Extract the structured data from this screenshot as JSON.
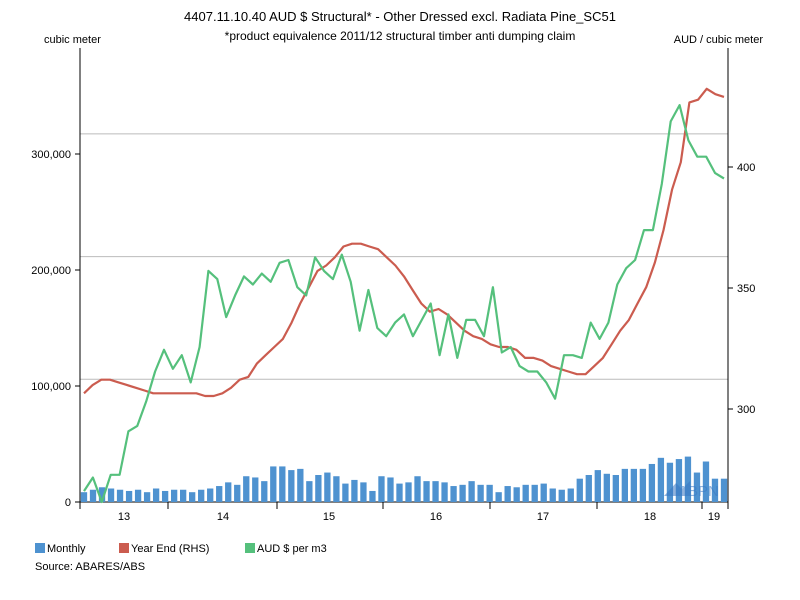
{
  "title": "4407.11.10.40 AUD $ Structural* - Other Dressed excl. Radiata Pine_SC51",
  "subtitle": "*product equivalence 2011/12 structural timber anti dumping claim",
  "left_unit": "cubic meter",
  "right_unit": "AUD / cubic meter",
  "source": "Source: ABARES/ABS",
  "watermark": "ABPN",
  "colors": {
    "monthly": "#4e92d0",
    "year_end": "#cb5c4f",
    "aud": "#55c07c",
    "grid": "#bbbbbb"
  },
  "chart_data": {
    "type": "bar+line",
    "x_tick_labels": [
      "13",
      "14",
      "15",
      "16",
      "17",
      "18",
      "19"
    ],
    "y_left": {
      "ylim": [
        0,
        370000
      ],
      "ticks": [
        0,
        100000,
        200000,
        300000
      ],
      "tick_labels": [
        "0",
        "100,000",
        "200,000",
        "300,000"
      ]
    },
    "y_right": {
      "ylim": [
        280,
        447
      ],
      "ticks": [
        300,
        350,
        400
      ],
      "tick_labels": [
        "300",
        "350",
        "400"
      ]
    },
    "grid": true,
    "legend_position": "bottom-left",
    "series": [
      {
        "name": "Monthly",
        "type": "bar",
        "axis": "left",
        "values": [
          8000,
          10000,
          12000,
          11000,
          10000,
          9000,
          10000,
          8000,
          11000,
          9000,
          10000,
          10000,
          8000,
          10000,
          11000,
          13000,
          16000,
          14000,
          21000,
          20000,
          17000,
          29000,
          29000,
          26000,
          27000,
          17000,
          22000,
          24000,
          21000,
          15000,
          18000,
          16000,
          9000,
          21000,
          20000,
          15000,
          16000,
          21000,
          17000,
          17000,
          16000,
          13000,
          14000,
          17000,
          14000,
          14000,
          8000,
          13000,
          12000,
          14000,
          14000,
          15000,
          11000,
          10000,
          11000,
          19000,
          22000,
          26000,
          23000,
          22000,
          27000,
          27000,
          27000,
          31000,
          36000,
          32000,
          35000,
          37000,
          24000,
          33000,
          19000,
          19000
        ]
      },
      {
        "name": "Year End (RHS)",
        "type": "line",
        "axis": "right",
        "values": [
          320,
          323,
          325,
          325,
          324,
          323,
          322,
          321,
          320,
          320,
          320,
          320,
          320,
          320,
          319,
          319,
          320,
          322,
          325,
          326,
          331,
          334,
          337,
          340,
          346,
          353,
          359,
          365,
          367,
          370,
          374,
          375,
          375,
          374,
          373,
          370,
          367,
          363,
          358,
          353,
          350,
          351,
          349,
          346,
          343,
          341,
          340,
          338,
          337,
          337,
          336,
          333,
          333,
          332,
          330,
          329,
          328,
          327,
          327,
          330,
          333,
          338,
          343,
          347,
          353,
          359,
          368,
          380,
          395,
          405,
          427,
          428,
          432,
          430,
          429
        ]
      },
      {
        "name": "AUD $ per m3",
        "type": "line",
        "axis": "right",
        "values": [
          284,
          289,
          280,
          290,
          290,
          306,
          308,
          317,
          328,
          336,
          329,
          334,
          324,
          337,
          365,
          362,
          348,
          356,
          363,
          360,
          364,
          361,
          368,
          369,
          359,
          356,
          370,
          365,
          362,
          371,
          361,
          343,
          358,
          344,
          341,
          346,
          349,
          341,
          347,
          353,
          334,
          349,
          333,
          347,
          347,
          341,
          359,
          335,
          337,
          330,
          328,
          328,
          324,
          318,
          334,
          334,
          333,
          346,
          340,
          346,
          360,
          366,
          369,
          380,
          380,
          397,
          420,
          426,
          413,
          407,
          407,
          401,
          399
        ]
      }
    ]
  }
}
